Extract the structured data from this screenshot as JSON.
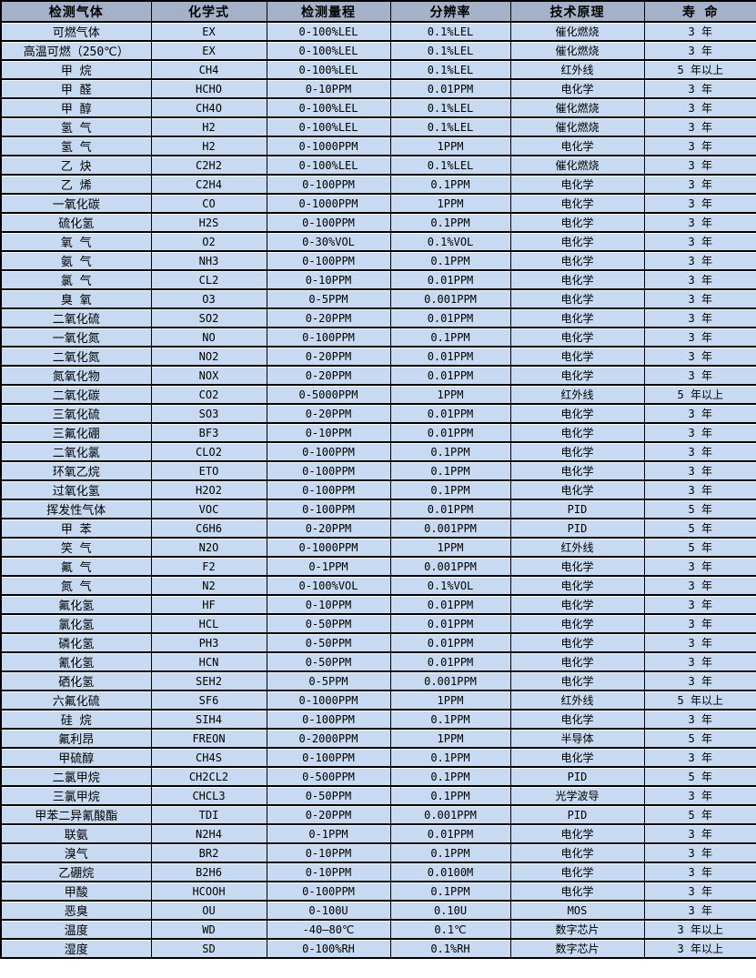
{
  "colors": {
    "header_bg": "#a4b1c9",
    "row_bg": "#c7daf1",
    "border": "#000000"
  },
  "table": {
    "columns": [
      {
        "label": "检测气体"
      },
      {
        "label": "化学式"
      },
      {
        "label": "检测量程"
      },
      {
        "label": "分辨率"
      },
      {
        "label": "技术原理"
      },
      {
        "label": "寿 命"
      }
    ],
    "rows": [
      [
        "可燃气体",
        "EX",
        "0-100%LEL",
        "0.1%LEL",
        "催化燃烧",
        "3 年"
      ],
      [
        "高温可燃（250℃）",
        "EX",
        "0-100%LEL",
        "0.1%LEL",
        "催化燃烧",
        "3 年"
      ],
      [
        "甲 烷",
        "CH4",
        "0-100%LEL",
        "0.1%LEL",
        "红外线",
        "5 年以上"
      ],
      [
        "甲 醛",
        "HCHO",
        "0-10PPM",
        "0.01PPM",
        "电化学",
        "3 年"
      ],
      [
        "甲 醇",
        "CH4O",
        "0-100%LEL",
        "0.1%LEL",
        "催化燃烧",
        "3 年"
      ],
      [
        "氢 气",
        "H2",
        "0-100%LEL",
        "0.1%LEL",
        "催化燃烧",
        "3 年"
      ],
      [
        "氢 气",
        "H2",
        "0-1000PPM",
        "1PPM",
        "电化学",
        "3 年"
      ],
      [
        "乙 炔",
        "C2H2",
        "0-100%LEL",
        "0.1%LEL",
        "催化燃烧",
        "3 年"
      ],
      [
        "乙 烯",
        "C2H4",
        "0-100PPM",
        "0.1PPM",
        "电化学",
        "3 年"
      ],
      [
        "一氧化碳",
        "CO",
        "0-1000PPM",
        "1PPM",
        "电化学",
        "3 年"
      ],
      [
        "硫化氢",
        "H2S",
        "0-100PPM",
        "0.1PPM",
        "电化学",
        "3 年"
      ],
      [
        "氧 气",
        "O2",
        "0-30%VOL",
        "0.1%VOL",
        "电化学",
        "3 年"
      ],
      [
        "氨 气",
        "NH3",
        "0-100PPM",
        "0.1PPM",
        "电化学",
        "3 年"
      ],
      [
        "氯 气",
        "CL2",
        "0-10PPM",
        "0.01PPM",
        "电化学",
        "3 年"
      ],
      [
        "臭 氧",
        "O3",
        "0-5PPM",
        "0.001PPM",
        "电化学",
        "3 年"
      ],
      [
        "二氧化硫",
        "SO2",
        "0-20PPM",
        "0.01PPM",
        "电化学",
        "3 年"
      ],
      [
        "一氧化氮",
        "NO",
        "0-100PPM",
        "0.1PPM",
        "电化学",
        "3 年"
      ],
      [
        "二氧化氮",
        "NO2",
        "0-20PPM",
        "0.01PPM",
        "电化学",
        "3 年"
      ],
      [
        "氮氧化物",
        "NOX",
        "0-20PPM",
        "0.01PPM",
        "电化学",
        "3 年"
      ],
      [
        "二氧化碳",
        "CO2",
        "0-5000PPM",
        "1PPM",
        "红外线",
        "5 年以上"
      ],
      [
        "三氧化硫",
        "SO3",
        "0-20PPM",
        "0.01PPM",
        "电化学",
        "3 年"
      ],
      [
        "三氟化硼",
        "BF3",
        "0-10PPM",
        "0.01PPM",
        "电化学",
        "3 年"
      ],
      [
        "二氧化氯",
        "CLO2",
        "0-100PPM",
        "0.1PPM",
        "电化学",
        "3 年"
      ],
      [
        "环氧乙烷",
        "ETO",
        "0-100PPM",
        "0.1PPM",
        "电化学",
        "3 年"
      ],
      [
        "过氧化氢",
        "H2O2",
        "0-100PPM",
        "0.1PPM",
        "电化学",
        "3 年"
      ],
      [
        "挥发性气体",
        "VOC",
        "0-100PPM",
        "0.01PPM",
        "PID",
        "5 年"
      ],
      [
        "甲 苯",
        "C6H6",
        "0-20PPM",
        "0.001PPM",
        "PID",
        "5 年"
      ],
      [
        "笑 气",
        "N2O",
        "0-1000PPM",
        "1PPM",
        "红外线",
        "5 年"
      ],
      [
        "氟 气",
        "F2",
        "0-1PPM",
        "0.001PPM",
        "电化学",
        "3 年"
      ],
      [
        "氮 气",
        "N2",
        "0-100%VOL",
        "0.1%VOL",
        "电化学",
        "3 年"
      ],
      [
        "氟化氢",
        "HF",
        "0-10PPM",
        "0.01PPM",
        "电化学",
        "3 年"
      ],
      [
        "氯化氢",
        "HCL",
        "0-50PPM",
        "0.01PPM",
        "电化学",
        "3 年"
      ],
      [
        "磷化氢",
        "PH3",
        "0-50PPM",
        "0.01PPM",
        "电化学",
        "3 年"
      ],
      [
        "氰化氢",
        "HCN",
        "0-50PPM",
        "0.01PPM",
        "电化学",
        "3 年"
      ],
      [
        "硒化氢",
        "SEH2",
        "0-5PPM",
        "0.001PPM",
        "电化学",
        "3 年"
      ],
      [
        "六氟化硫",
        "SF6",
        "0-1000PPM",
        "1PPM",
        "红外线",
        "5 年以上"
      ],
      [
        "硅 烷",
        "SIH4",
        "0-100PPM",
        "0.1PPM",
        "电化学",
        "3 年"
      ],
      [
        "氟利昂",
        "FREON",
        "0-2000PPM",
        "1PPM",
        "半导体",
        "5 年"
      ],
      [
        "甲硫醇",
        "CH4S",
        "0-100PPM",
        "0.1PPM",
        "电化学",
        "3 年"
      ],
      [
        "二氯甲烷",
        "CH2CL2",
        "0-500PPM",
        "0.1PPM",
        "PID",
        "5 年"
      ],
      [
        "三氯甲烷",
        "CHCL3",
        "0-50PPM",
        "0.1PPM",
        "光学波导",
        "3 年"
      ],
      [
        "甲苯二异氰酸酯",
        "TDI",
        "0-20PPM",
        "0.001PPM",
        "PID",
        "5 年"
      ],
      [
        "联氨",
        "N2H4",
        "0-1PPM",
        "0.01PPM",
        "电化学",
        "3 年"
      ],
      [
        "溴气",
        "BR2",
        "0-10PPM",
        "0.1PPM",
        "电化学",
        "3 年"
      ],
      [
        "乙硼烷",
        "B2H6",
        "0-10PPM",
        "0.0100M",
        "电化学",
        "3 年"
      ],
      [
        "甲酸",
        "HCOOH",
        "0-100PPM",
        "0.1PPM",
        "电化学",
        "3 年"
      ],
      [
        "恶臭",
        "OU",
        "0-100U",
        "0.10U",
        "MOS",
        "3 年"
      ],
      [
        "温度",
        "WD",
        "-40—80℃",
        "0.1℃",
        "数字芯片",
        "3 年以上"
      ],
      [
        "湿度",
        "SD",
        "0-100%RH",
        "0.1%RH",
        "数字芯片",
        "3 年以上"
      ]
    ]
  }
}
